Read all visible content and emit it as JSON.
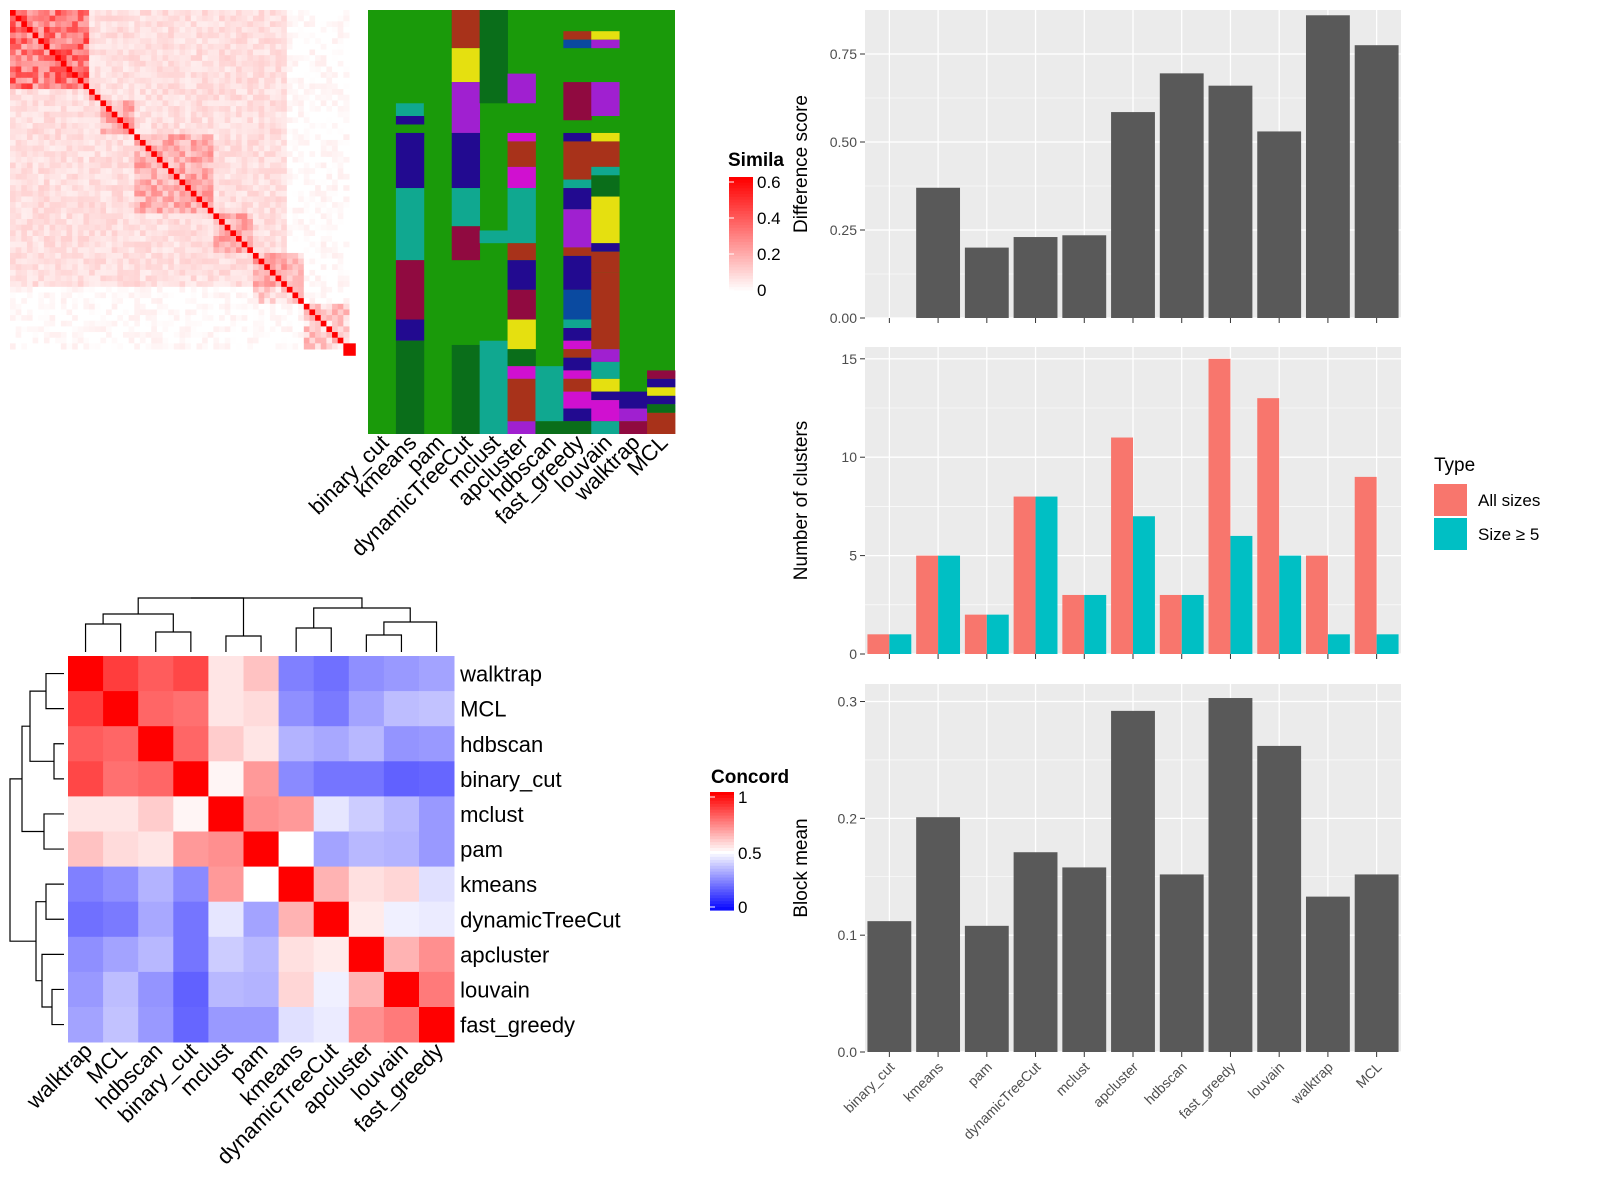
{
  "colors": {
    "bar_gray": "#595959",
    "all_sizes": "#F8766D",
    "size_ge5": "#00BFC4",
    "panel_bg": "#EBEBEB",
    "heat_high": "#FF0000",
    "heat_low": "#FFFFFF",
    "conc_low": "#0000FF",
    "conc_mid": "#FFFFFF",
    "conc_high": "#FF0000"
  },
  "methods": [
    "binary_cut",
    "kmeans",
    "pam",
    "dynamicTreeCut",
    "mclust",
    "apcluster",
    "hdbscan",
    "fast_greedy",
    "louvain",
    "walktrap",
    "MCL"
  ],
  "similarity_legend": {
    "title": "Simila",
    "labels": [
      "0.6",
      "0.4",
      "0.2",
      "0"
    ]
  },
  "concordance_legend": {
    "title": "Concord",
    "labels": [
      "1",
      "0.5",
      "0"
    ]
  },
  "concordance_order": [
    "walktrap",
    "MCL",
    "hdbscan",
    "binary_cut",
    "mclust",
    "pam",
    "kmeans",
    "dynamicTreeCut",
    "apcluster",
    "louvain",
    "fast_greedy"
  ],
  "chart_data": [
    {
      "type": "bar",
      "ylabel": "Difference score",
      "categories": [
        "binary_cut",
        "kmeans",
        "pam",
        "dynamicTreeCut",
        "mclust",
        "apcluster",
        "hdbscan",
        "fast_greedy",
        "louvain",
        "walktrap",
        "MCL"
      ],
      "values": [
        0,
        0.37,
        0.2,
        0.23,
        0.235,
        0.585,
        0.695,
        0.66,
        0.53,
        0.86,
        0.775
      ],
      "ylim": [
        0,
        0.875
      ],
      "yticks": [
        "0.00",
        "0.25",
        "0.50",
        "0.75"
      ]
    },
    {
      "type": "bar",
      "ylabel": "Number of clusters",
      "categories": [
        "binary_cut",
        "kmeans",
        "pam",
        "dynamicTreeCut",
        "mclust",
        "apcluster",
        "hdbscan",
        "fast_greedy",
        "louvain",
        "walktrap",
        "MCL"
      ],
      "series": [
        {
          "name": "All sizes",
          "values": [
            1,
            5,
            2,
            8,
            3,
            11,
            3,
            15,
            13,
            5,
            9
          ]
        },
        {
          "name": "Size ≥ 5",
          "values": [
            1,
            5,
            2,
            8,
            3,
            7,
            3,
            6,
            5,
            1,
            1
          ]
        }
      ],
      "ylim": [
        0,
        15.6
      ],
      "yticks": [
        "0",
        "5",
        "10",
        "15"
      ],
      "legend": {
        "title": "Type",
        "position": "right"
      }
    },
    {
      "type": "bar",
      "ylabel": "Block mean",
      "categories": [
        "binary_cut",
        "kmeans",
        "pam",
        "dynamicTreeCut",
        "mclust",
        "apcluster",
        "hdbscan",
        "fast_greedy",
        "louvain",
        "walktrap",
        "MCL"
      ],
      "values": [
        0.112,
        0.201,
        0.108,
        0.171,
        0.158,
        0.292,
        0.152,
        0.303,
        0.262,
        0.133,
        0.152
      ],
      "ylim": [
        0,
        0.315
      ],
      "yticks": [
        "0.0",
        "0.1",
        "0.2",
        "0.3"
      ]
    },
    {
      "type": "heatmap",
      "title": "Concord",
      "rows": [
        "walktrap",
        "MCL",
        "hdbscan",
        "binary_cut",
        "mclust",
        "pam",
        "kmeans",
        "dynamicTreeCut",
        "apcluster",
        "louvain",
        "fast_greedy"
      ],
      "columns": [
        "walktrap",
        "MCL",
        "hdbscan",
        "binary_cut",
        "mclust",
        "pam",
        "kmeans",
        "dynamicTreeCut",
        "apcluster",
        "louvain",
        "fast_greedy"
      ],
      "values": [
        [
          1,
          0.88,
          0.82,
          0.86,
          0.55,
          0.62,
          0.25,
          0.22,
          0.28,
          0.3,
          0.32
        ],
        [
          0.88,
          1,
          0.8,
          0.78,
          0.55,
          0.57,
          0.28,
          0.24,
          0.32,
          0.37,
          0.38
        ],
        [
          0.82,
          0.8,
          1,
          0.8,
          0.6,
          0.55,
          0.35,
          0.33,
          0.36,
          0.29,
          0.3
        ],
        [
          0.86,
          0.78,
          0.8,
          1,
          0.52,
          0.7,
          0.27,
          0.23,
          0.23,
          0.19,
          0.2
        ],
        [
          0.55,
          0.55,
          0.6,
          0.52,
          1,
          0.72,
          0.7,
          0.45,
          0.4,
          0.36,
          0.3
        ],
        [
          0.62,
          0.57,
          0.55,
          0.7,
          0.72,
          1,
          0.5,
          0.32,
          0.36,
          0.35,
          0.3
        ],
        [
          0.25,
          0.28,
          0.35,
          0.27,
          0.7,
          0.5,
          1,
          0.65,
          0.56,
          0.58,
          0.44
        ],
        [
          0.22,
          0.24,
          0.33,
          0.23,
          0.45,
          0.32,
          0.65,
          1,
          0.54,
          0.47,
          0.46
        ],
        [
          0.28,
          0.32,
          0.36,
          0.23,
          0.4,
          0.36,
          0.56,
          0.54,
          1,
          0.65,
          0.72
        ],
        [
          0.3,
          0.37,
          0.29,
          0.19,
          0.36,
          0.35,
          0.58,
          0.47,
          0.65,
          1,
          0.76
        ],
        [
          0.32,
          0.38,
          0.3,
          0.2,
          0.3,
          0.3,
          0.44,
          0.46,
          0.72,
          0.76,
          1
        ]
      ],
      "zlim": [
        0,
        1
      ]
    }
  ]
}
